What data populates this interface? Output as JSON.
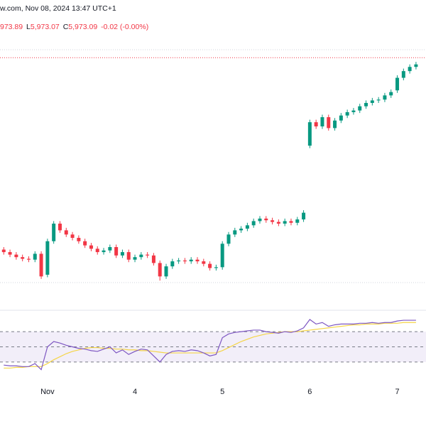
{
  "header": {
    "source": "w.com, Nov 08, 2024 13:47 UTC+1",
    "high_value": "973.89",
    "low_label": "L",
    "low_value": "5,973.07",
    "close_label": "C",
    "close_value": "5,973.09",
    "change": "-0.02 (-0.00%)"
  },
  "chart_data": {
    "type": "candlestick",
    "open": [
      5748,
      5745,
      5742,
      5739,
      5737,
      5736,
      5743,
      5718,
      5758,
      5779,
      5771,
      5766,
      5762,
      5758,
      5753,
      5749,
      5745,
      5747,
      5751,
      5741,
      5745,
      5736,
      5739,
      5742,
      5741,
      5732,
      5716,
      5728,
      5734,
      5735,
      5734,
      5736,
      5734,
      5731,
      5726,
      5727,
      5755,
      5766,
      5771,
      5773,
      5777,
      5782,
      5785,
      5783,
      5781,
      5779,
      5782,
      5780,
      5784,
      5872,
      5900,
      5895,
      5906,
      5893,
      5902,
      5908,
      5912,
      5914,
      5919,
      5923,
      5926,
      5927,
      5932,
      5938,
      5953,
      5961,
      5966
    ],
    "high": [
      5751,
      5748,
      5745,
      5742,
      5740,
      5746,
      5746,
      5761,
      5782,
      5782,
      5774,
      5769,
      5765,
      5761,
      5756,
      5752,
      5750,
      5754,
      5754,
      5748,
      5748,
      5742,
      5745,
      5745,
      5744,
      5735,
      5731,
      5737,
      5738,
      5738,
      5739,
      5739,
      5737,
      5734,
      5730,
      5758,
      5769,
      5774,
      5776,
      5780,
      5785,
      5788,
      5788,
      5786,
      5784,
      5785,
      5785,
      5787,
      5795,
      5903,
      5903,
      5909,
      5909,
      5905,
      5911,
      5915,
      5917,
      5922,
      5926,
      5929,
      5930,
      5935,
      5939,
      5956,
      5964,
      5969,
      5972
    ],
    "low": [
      5742,
      5739,
      5736,
      5734,
      5733,
      5733,
      5713,
      5715,
      5755,
      5768,
      5763,
      5759,
      5755,
      5750,
      5746,
      5742,
      5742,
      5744,
      5738,
      5738,
      5733,
      5733,
      5736,
      5738,
      5729,
      5711,
      5713,
      5725,
      5731,
      5731,
      5731,
      5731,
      5728,
      5723,
      5723,
      5724,
      5752,
      5763,
      5768,
      5770,
      5774,
      5779,
      5780,
      5778,
      5776,
      5776,
      5777,
      5777,
      5781,
      5869,
      5892,
      5892,
      5890,
      5890,
      5899,
      5905,
      5909,
      5911,
      5916,
      5920,
      5923,
      5924,
      5929,
      5935,
      5950,
      5958,
      5963
    ],
    "close": [
      5745,
      5742,
      5739,
      5737,
      5736,
      5743,
      5716,
      5758,
      5779,
      5771,
      5766,
      5762,
      5758,
      5753,
      5749,
      5745,
      5747,
      5751,
      5741,
      5745,
      5736,
      5739,
      5742,
      5741,
      5732,
      5716,
      5728,
      5734,
      5735,
      5734,
      5736,
      5734,
      5731,
      5726,
      5727,
      5755,
      5766,
      5771,
      5773,
      5777,
      5782,
      5785,
      5783,
      5781,
      5779,
      5782,
      5780,
      5784,
      5792,
      5900,
      5895,
      5906,
      5893,
      5902,
      5908,
      5912,
      5914,
      5919,
      5923,
      5926,
      5927,
      5932,
      5936,
      5953,
      5961,
      5966,
      5969
    ],
    "up_color": "#089981",
    "down_color": "#f23645",
    "ylim": [
      5690,
      5995
    ],
    "price_line": 5977,
    "xlim": [
      -0.6,
      67.6
    ],
    "xticks": [
      {
        "value": 7,
        "label": "Nov"
      },
      {
        "value": 21,
        "label": "4"
      },
      {
        "value": 35,
        "label": "5"
      },
      {
        "value": 49,
        "label": "6"
      },
      {
        "value": 63,
        "label": "7"
      }
    ],
    "rsi": {
      "values": [
        26,
        25,
        25,
        24,
        24,
        28,
        20,
        50,
        57,
        55,
        52,
        50,
        48,
        47,
        45,
        44,
        47,
        50,
        42,
        46,
        40,
        44,
        47,
        46,
        38,
        30,
        40,
        44,
        45,
        44,
        46,
        45,
        42,
        38,
        40,
        62,
        67,
        69,
        70,
        71,
        72,
        72,
        70,
        69,
        68,
        70,
        69,
        71,
        75,
        86,
        80,
        82,
        77,
        79,
        80,
        80,
        80,
        81,
        81,
        82,
        81,
        82,
        82,
        84,
        85,
        85,
        85
      ],
      "ma": [
        22,
        22,
        23,
        23,
        24,
        24,
        24,
        28,
        33,
        37,
        41,
        44,
        46,
        48,
        49,
        49,
        48,
        48,
        47,
        47,
        46,
        46,
        45,
        45,
        44,
        43,
        42,
        42,
        42,
        42,
        42,
        42,
        42,
        42,
        42,
        45,
        49,
        53,
        57,
        60,
        63,
        65,
        67,
        68,
        69,
        70,
        70,
        70,
        71,
        72,
        73,
        74,
        75,
        76,
        77,
        78,
        79,
        79,
        80,
        80,
        80,
        81,
        81,
        81,
        82,
        82,
        82
      ],
      "color": "#7e57c2",
      "ma_color": "#f5d547",
      "ylim": [
        0,
        100
      ],
      "levels": [
        30,
        50,
        70
      ]
    }
  }
}
